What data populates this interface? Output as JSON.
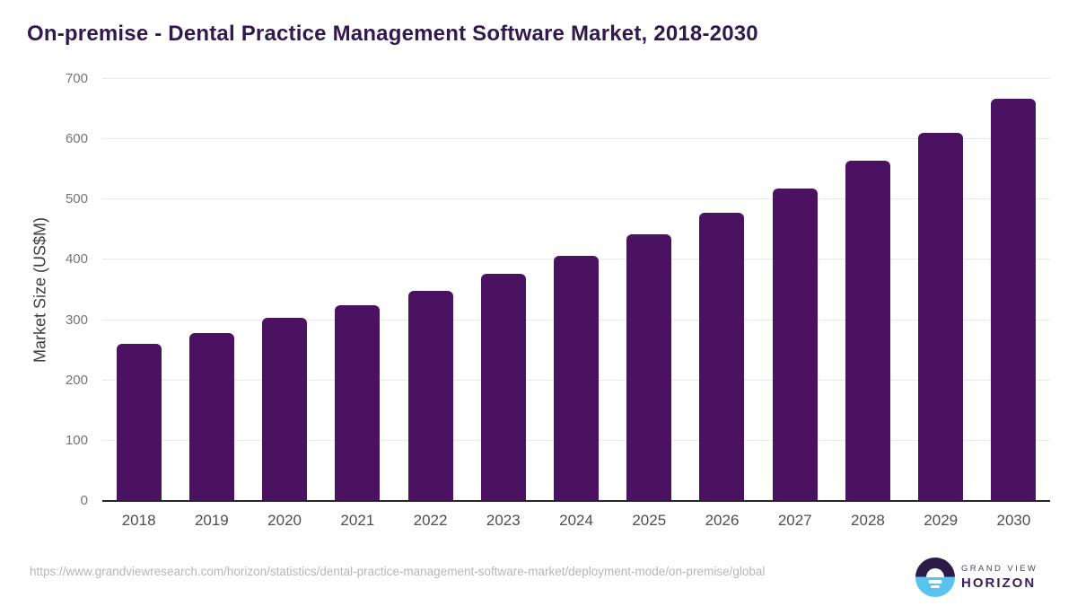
{
  "title": "On-premise - Dental Practice Management Software Market, 2018-2030",
  "source_url": "https://www.grandviewresearch.com/horizon/statistics/dental-practice-management-software-market/deployment-mode/on-premise/global",
  "branding": {
    "line1": "GRAND VIEW",
    "line2": "HORIZON"
  },
  "colors": {
    "bar": "#4a1261",
    "title": "#301a4d",
    "axis_line": "#262626",
    "gridline": "#e9e9e9",
    "y_tick_text": "#757575",
    "x_tick_text": "#4f4f4f",
    "axis_label_text": "#3d3d3d",
    "source_text": "#b6b6b6",
    "logo_dark_half": "#2c1b47",
    "logo_blue_half": "#58c3ef",
    "logo_grand_view_text": "#4b4667",
    "logo_horizon_text": "#3b2060",
    "background": "#ffffff"
  },
  "chart_data": {
    "type": "bar",
    "title": "On-premise - Dental Practice Management Software Market, 2018-2030",
    "categories": [
      "2018",
      "2019",
      "2020",
      "2021",
      "2022",
      "2023",
      "2024",
      "2025",
      "2026",
      "2027",
      "2028",
      "2029",
      "2030"
    ],
    "values": [
      260,
      279,
      304,
      324,
      349,
      377,
      407,
      442,
      478,
      518,
      565,
      610,
      667
    ],
    "xlabel": "",
    "ylabel": "Market Size (US$M)",
    "ylim": [
      0,
      700
    ],
    "ytick_step": 100,
    "yticks": [
      0,
      100,
      200,
      300,
      400,
      500,
      600,
      700
    ],
    "grid": true,
    "legend": false,
    "bar_color": "#4a1261"
  }
}
